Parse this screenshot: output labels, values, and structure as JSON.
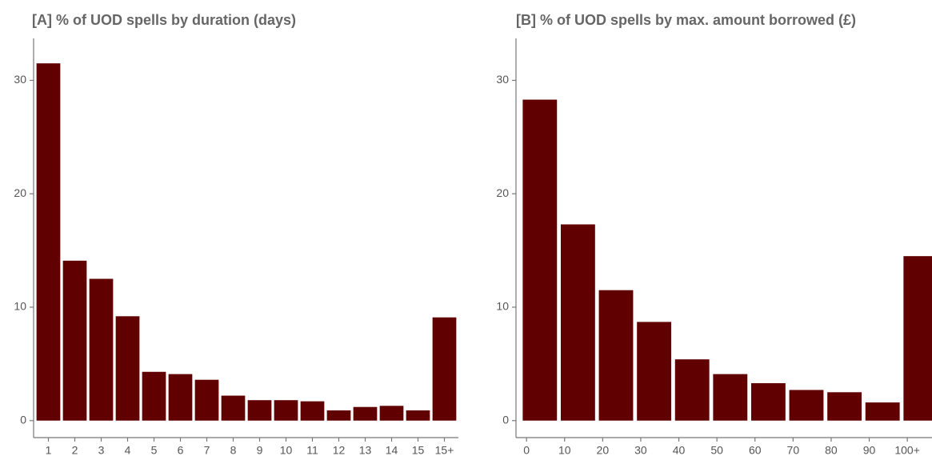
{
  "chart_data": [
    {
      "type": "bar",
      "title": "[A] % of UOD spells by duration (days)",
      "categories": [
        "1",
        "2",
        "3",
        "4",
        "5",
        "6",
        "7",
        "8",
        "9",
        "10",
        "11",
        "12",
        "13",
        "14",
        "15",
        "15+"
      ],
      "values": [
        31.5,
        14.1,
        12.5,
        9.2,
        4.3,
        4.1,
        3.6,
        2.2,
        1.8,
        1.8,
        1.7,
        0.9,
        1.2,
        1.3,
        0.9,
        9.1
      ],
      "color": "#600000",
      "ylim": [
        -1.5,
        33.7
      ],
      "yticks": [
        0,
        10,
        20,
        30
      ],
      "grid": false
    },
    {
      "type": "bar",
      "title": "[B] % of UOD spells by max. amount borrowed (£)",
      "categories": [
        "0",
        "10",
        "20",
        "30",
        "40",
        "50",
        "60",
        "70",
        "80",
        "90",
        "100+"
      ],
      "values": [
        28.3,
        17.3,
        11.5,
        8.7,
        5.4,
        4.1,
        3.3,
        2.7,
        2.5,
        1.6,
        14.5
      ],
      "color": "#600000",
      "ylim": [
        -1.5,
        33.7
      ],
      "yticks": [
        0,
        10,
        20,
        30
      ],
      "grid": false
    }
  ]
}
